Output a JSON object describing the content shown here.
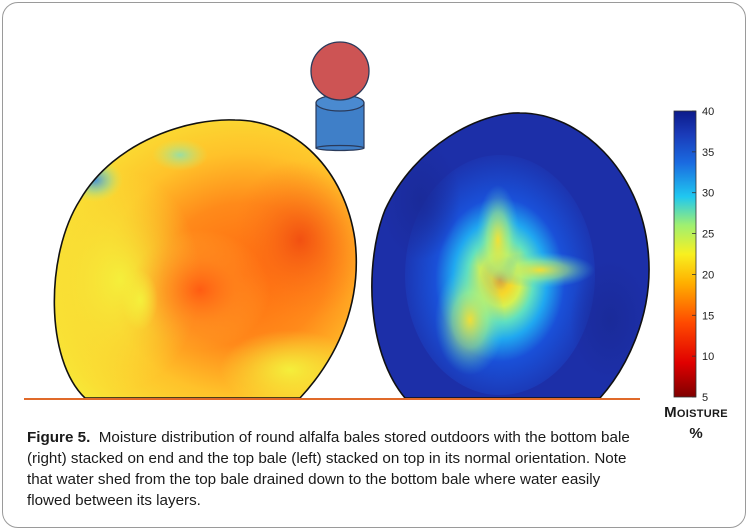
{
  "caption": {
    "figure_label": "Figure 5.",
    "text": "Moisture distribution of round alfalfa bales stored outdoors with the bottom bale (right) stacked on end and the top bale (left) stacked on top in its normal orientation. Note that water shed from the top bale drained down to the bottom bale where water easily flowed between its layers."
  },
  "colorbar": {
    "title": "Moisture",
    "unit": "%",
    "ticks": [
      "5",
      "10",
      "15",
      "20",
      "25",
      "30",
      "35",
      "40"
    ],
    "min": 5,
    "max": 40,
    "colors": {
      "stops": [
        "#7f0000",
        "#ff0000",
        "#ff7f00",
        "#ffff00",
        "#7fff7f",
        "#00bfff",
        "#0060ff",
        "#00008f"
      ]
    }
  },
  "icon": {
    "name": "stacked-bales-icon",
    "top_color": "#cd5454",
    "bottom_color": "#3f7fc8"
  },
  "bales": [
    {
      "name": "top-bale-left",
      "dominant": "orange-yellow"
    },
    {
      "name": "bottom-bale-right",
      "dominant": "blue"
    }
  ],
  "ground_line_color": "#e06a2a"
}
